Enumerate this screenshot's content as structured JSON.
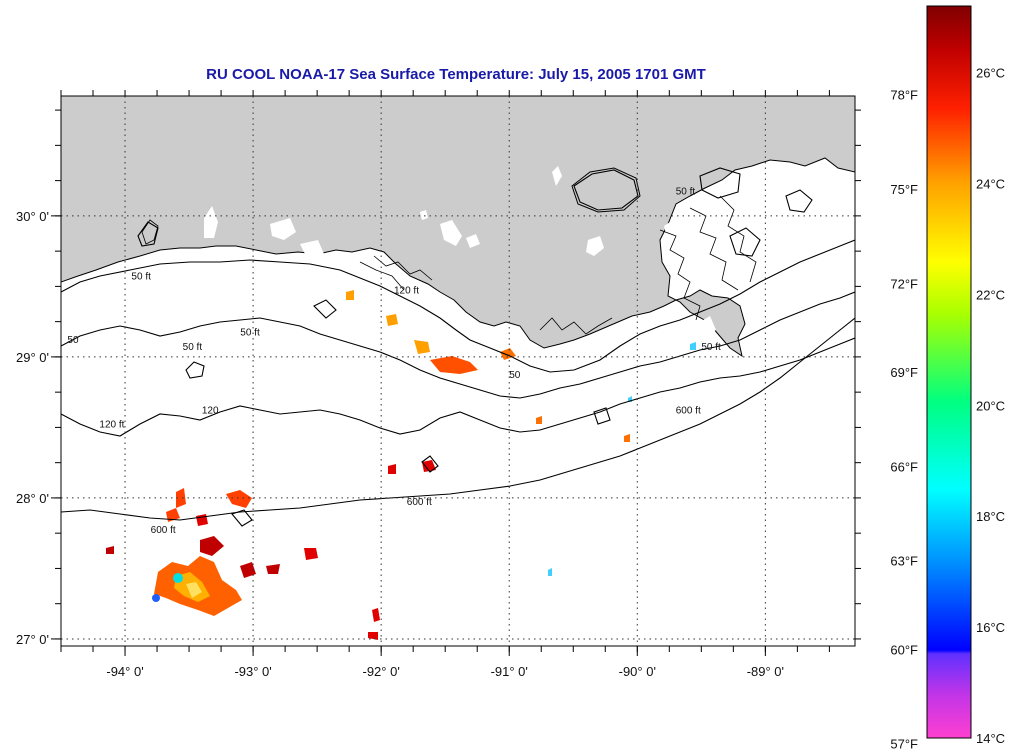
{
  "title": "RU COOL  NOAA-17  Sea Surface Temperature:  July 15, 2005 1701 GMT",
  "map": {
    "lon_range": [
      -94.5,
      -88.3
    ],
    "lat_range": [
      26.95,
      30.85
    ],
    "lon_ticks": [
      {
        "value": -94,
        "label": "-94° 0'"
      },
      {
        "value": -93,
        "label": "-93° 0'"
      },
      {
        "value": -92,
        "label": "-92° 0'"
      },
      {
        "value": -91,
        "label": "-91° 0'"
      },
      {
        "value": -90,
        "label": "-90° 0'"
      },
      {
        "value": -89,
        "label": "-89° 0'"
      }
    ],
    "lat_ticks": [
      {
        "value": 30,
        "label": "30° 0'"
      },
      {
        "value": 29,
        "label": "29° 0'"
      },
      {
        "value": 28,
        "label": "28° 0'"
      },
      {
        "value": 27,
        "label": "27° 0'"
      }
    ],
    "land_color": "#cccccc",
    "grid": "dotted",
    "contour_labels": [
      {
        "text": "50 ft",
        "lon": -93.95,
        "lat": 29.55
      },
      {
        "text": "50 ft",
        "lon": -93.55,
        "lat": 29.05
      },
      {
        "text": "50 ft",
        "lon": -93.1,
        "lat": 29.15
      },
      {
        "text": "50",
        "lon": -94.45,
        "lat": 29.1
      },
      {
        "text": "120 ft",
        "lon": -91.9,
        "lat": 29.45
      },
      {
        "text": "120",
        "lon": -93.4,
        "lat": 28.6
      },
      {
        "text": "120 ft",
        "lon": -94.2,
        "lat": 28.5
      },
      {
        "text": "600 ft",
        "lon": -93.8,
        "lat": 27.75
      },
      {
        "text": "600 ft",
        "lon": -91.8,
        "lat": 27.95
      },
      {
        "text": "600 ft",
        "lon": -89.7,
        "lat": 28.6
      },
      {
        "text": "50 ft",
        "lon": -89.7,
        "lat": 30.15
      },
      {
        "text": "50",
        "lon": -91.0,
        "lat": 28.85
      },
      {
        "text": "50 ft",
        "lon": -89.5,
        "lat": 29.05
      }
    ]
  },
  "colorbar": {
    "min_c": 14,
    "max_c": 27.2,
    "colors_low_to_high": [
      "#ff3fd0",
      "#9b30ff",
      "#0000ff",
      "#00b0ff",
      "#00ffff",
      "#00ff88",
      "#88ff00",
      "#ffff00",
      "#ffa500",
      "#ff3000",
      "#d40000",
      "#800000"
    ],
    "fahrenheit_labels": [
      {
        "label": "78°F",
        "value_c": 25.6
      },
      {
        "label": "75°F",
        "value_c": 23.9
      },
      {
        "label": "72°F",
        "value_c": 22.2
      },
      {
        "label": "69°F",
        "value_c": 20.6
      },
      {
        "label": "66°F",
        "value_c": 18.9
      },
      {
        "label": "63°F",
        "value_c": 17.2
      },
      {
        "label": "60°F",
        "value_c": 15.6
      },
      {
        "label": "57°F",
        "value_c": 13.9
      }
    ],
    "celsius_labels": [
      {
        "label": "26°C",
        "value_c": 26
      },
      {
        "label": "24°C",
        "value_c": 24
      },
      {
        "label": "22°C",
        "value_c": 22
      },
      {
        "label": "20°C",
        "value_c": 20
      },
      {
        "label": "18°C",
        "value_c": 18
      },
      {
        "label": "16°C",
        "value_c": 16
      },
      {
        "label": "14°C",
        "value_c": 14
      }
    ]
  }
}
